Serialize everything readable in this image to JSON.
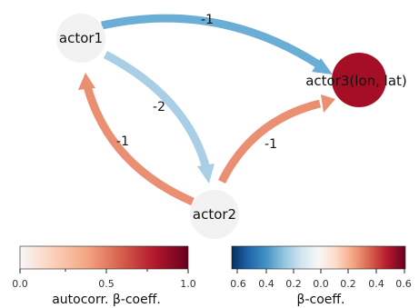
{
  "nodes": [
    {
      "id": "actor1",
      "label": "actor1",
      "color": "#f2f2f2"
    },
    {
      "id": "actor2",
      "label": "actor2",
      "color": "#f2f2f2"
    },
    {
      "id": "actor3",
      "label": "actor3(lon, lat)",
      "color": "#a50f26"
    }
  ],
  "edges": [
    {
      "from": "actor1",
      "to": "actor3",
      "label": "-1",
      "color": "#6aaed6"
    },
    {
      "from": "actor1",
      "to": "actor2",
      "label": "-2",
      "color": "#a9cfe6"
    },
    {
      "from": "actor2",
      "to": "actor1",
      "label": "-1",
      "color": "#eb8f72"
    },
    {
      "from": "actor2",
      "to": "actor3",
      "label": "-1",
      "color": "#eb8f72"
    }
  ],
  "colorbars": {
    "autocorr": {
      "title": "autocorr. β-coeff.",
      "ticks": [
        "0.0",
        "0.5",
        "1.0"
      ],
      "colors": [
        "#f7f7f7",
        "#fbd0b9",
        "#f4a582",
        "#d6604d",
        "#b2182b",
        "#67001f"
      ]
    },
    "beta": {
      "title": "β-coeff.",
      "ticks": [
        "0.6",
        "0.4",
        "0.2",
        "0.0",
        "0.2",
        "0.4",
        "0.6"
      ],
      "colors": [
        "#053061",
        "#2166ac",
        "#4393c3",
        "#92c5de",
        "#d1e5f0",
        "#f7f7f7",
        "#fddbc7",
        "#f4a582",
        "#d6604d",
        "#b2182b",
        "#67001f"
      ]
    }
  }
}
